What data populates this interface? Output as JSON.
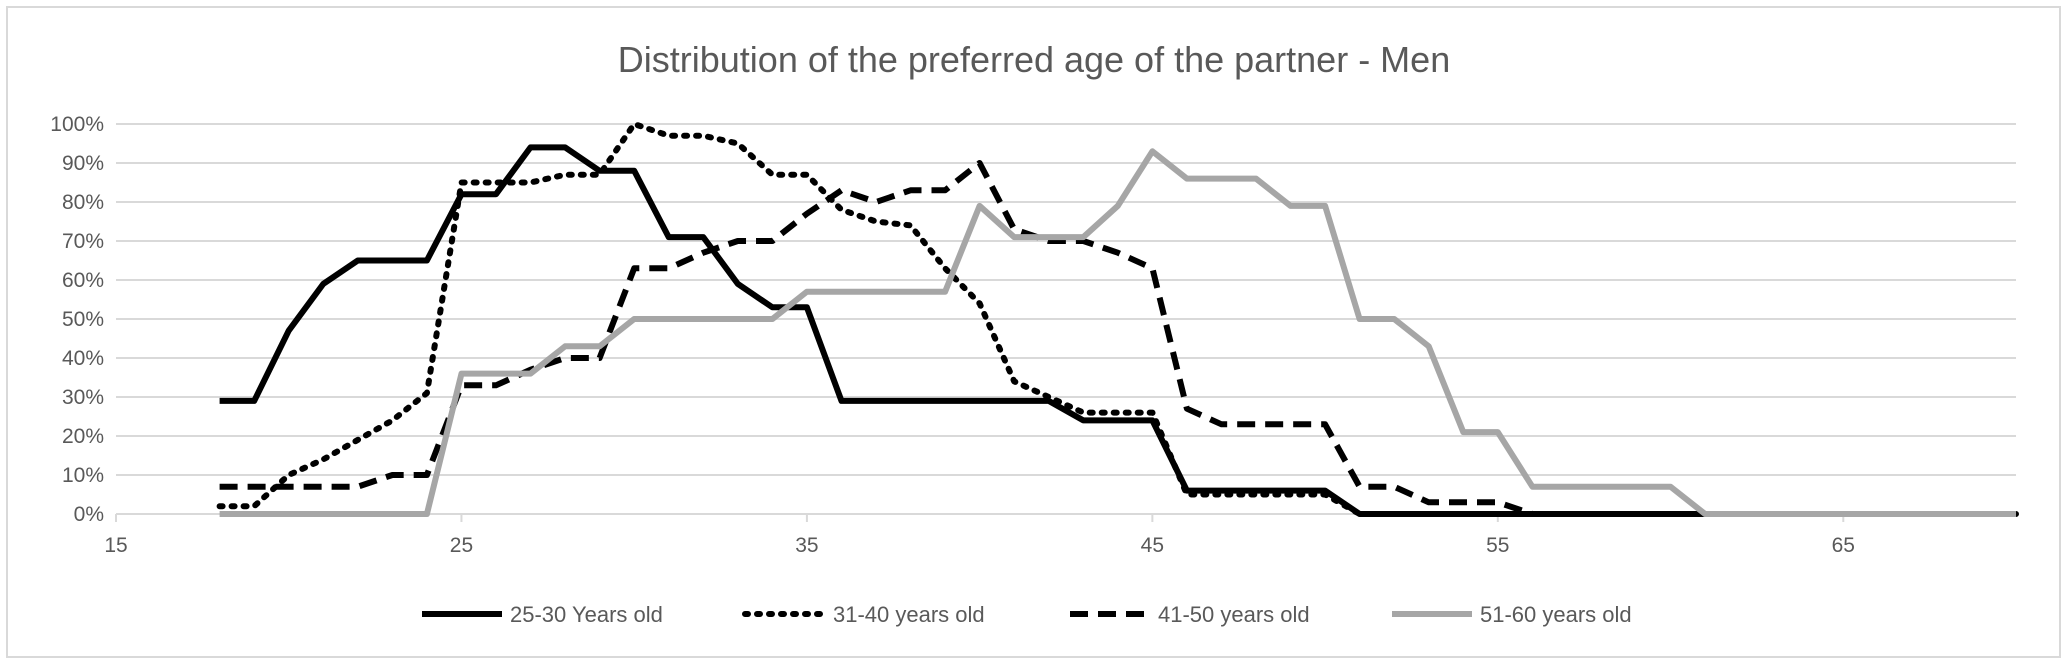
{
  "chart_data": {
    "type": "line",
    "title": "Distribution of the preferred age of the partner - Men",
    "xlabel": "",
    "ylabel": "",
    "xlim": [
      15,
      70
    ],
    "ylim": [
      0,
      1
    ],
    "x_ticks": [
      15,
      25,
      35,
      45,
      55,
      65
    ],
    "x_tick_labels": [
      "15",
      "25",
      "35",
      "45",
      "55",
      "65"
    ],
    "y_ticks": [
      0,
      0.1,
      0.2,
      0.3,
      0.4,
      0.5,
      0.6,
      0.7,
      0.8,
      0.9,
      1.0
    ],
    "y_tick_labels": [
      "0%",
      "10%",
      "20%",
      "30%",
      "40%",
      "50%",
      "60%",
      "70%",
      "80%",
      "90%",
      "100%"
    ],
    "grid": true,
    "legend_position": "bottom",
    "series": [
      {
        "name": "25-30 Years old",
        "color": "#000000",
        "dash": "solid",
        "x": [
          18,
          19,
          20,
          21,
          22,
          23,
          24,
          25,
          26,
          27,
          28,
          29,
          30,
          31,
          32,
          33,
          34,
          35,
          36,
          37,
          38,
          39,
          40,
          41,
          42,
          43,
          44,
          45,
          46,
          47,
          48,
          49,
          50,
          51,
          52,
          53,
          54,
          55,
          56,
          57,
          58,
          59,
          60,
          61,
          62,
          63,
          64,
          65,
          66,
          67,
          68,
          69,
          70
        ],
        "values": [
          0.29,
          0.29,
          0.47,
          0.59,
          0.65,
          0.65,
          0.65,
          0.82,
          0.82,
          0.94,
          0.94,
          0.88,
          0.88,
          0.71,
          0.71,
          0.59,
          0.53,
          0.53,
          0.29,
          0.29,
          0.29,
          0.29,
          0.29,
          0.29,
          0.29,
          0.24,
          0.24,
          0.24,
          0.06,
          0.06,
          0.06,
          0.06,
          0.06,
          0.0,
          0.0,
          0.0,
          0.0,
          0.0,
          0.0,
          0.0,
          0.0,
          0.0,
          0.0,
          0.0,
          0.0,
          0.0,
          0.0,
          0.0,
          0.0,
          0.0,
          0.0,
          0.0,
          0.0
        ]
      },
      {
        "name": "31-40 years old",
        "color": "#000000",
        "dash": "dotted",
        "x": [
          18,
          19,
          20,
          21,
          22,
          23,
          24,
          25,
          26,
          27,
          28,
          29,
          30,
          31,
          32,
          33,
          34,
          35,
          36,
          37,
          38,
          39,
          40,
          41,
          42,
          43,
          44,
          45,
          46,
          47,
          48,
          49,
          50,
          51,
          52,
          53,
          54,
          55,
          56,
          57,
          58,
          59,
          60,
          61,
          62,
          63,
          64,
          65,
          66,
          67,
          68,
          69,
          70
        ],
        "values": [
          0.02,
          0.02,
          0.1,
          0.14,
          0.19,
          0.24,
          0.31,
          0.85,
          0.85,
          0.85,
          0.87,
          0.87,
          1.0,
          0.97,
          0.97,
          0.95,
          0.87,
          0.87,
          0.78,
          0.75,
          0.74,
          0.63,
          0.54,
          0.34,
          0.3,
          0.26,
          0.26,
          0.26,
          0.05,
          0.05,
          0.05,
          0.05,
          0.05,
          0.0,
          0.0,
          0.0,
          0.0,
          0.0,
          0.0,
          0.0,
          0.0,
          0.0,
          0.0,
          0.0,
          0.0,
          0.0,
          0.0,
          0.0,
          0.0,
          0.0,
          0.0,
          0.0,
          0.0
        ]
      },
      {
        "name": "41-50 years old",
        "color": "#000000",
        "dash": "dashed",
        "x": [
          18,
          19,
          20,
          21,
          22,
          23,
          24,
          25,
          26,
          27,
          28,
          29,
          30,
          31,
          32,
          33,
          34,
          35,
          36,
          37,
          38,
          39,
          40,
          41,
          42,
          43,
          44,
          45,
          46,
          47,
          48,
          49,
          50,
          51,
          52,
          53,
          54,
          55,
          56,
          57,
          58,
          59,
          60,
          61,
          62,
          63,
          64,
          65,
          66,
          67,
          68,
          69,
          70
        ],
        "values": [
          0.07,
          0.07,
          0.07,
          0.07,
          0.07,
          0.1,
          0.1,
          0.33,
          0.33,
          0.37,
          0.4,
          0.4,
          0.63,
          0.63,
          0.67,
          0.7,
          0.7,
          0.77,
          0.83,
          0.8,
          0.83,
          0.83,
          0.9,
          0.73,
          0.7,
          0.7,
          0.67,
          0.63,
          0.27,
          0.23,
          0.23,
          0.23,
          0.23,
          0.07,
          0.07,
          0.03,
          0.03,
          0.03,
          0.0,
          0.0,
          0.0,
          0.0,
          0.0,
          0.0,
          0.0,
          0.0,
          0.0,
          0.0,
          0.0,
          0.0,
          0.0,
          0.0,
          0.0
        ]
      },
      {
        "name": "51-60 years old",
        "color": "#a6a6a6",
        "dash": "solid",
        "x": [
          18,
          19,
          20,
          21,
          22,
          23,
          24,
          25,
          26,
          27,
          28,
          29,
          30,
          31,
          32,
          33,
          34,
          35,
          36,
          37,
          38,
          39,
          40,
          41,
          42,
          43,
          44,
          45,
          46,
          47,
          48,
          49,
          50,
          51,
          52,
          53,
          54,
          55,
          56,
          57,
          58,
          59,
          60,
          61,
          62,
          63,
          64,
          65,
          66,
          67,
          68,
          69,
          70
        ],
        "values": [
          0.0,
          0.0,
          0.0,
          0.0,
          0.0,
          0.0,
          0.0,
          0.36,
          0.36,
          0.36,
          0.43,
          0.43,
          0.5,
          0.5,
          0.5,
          0.5,
          0.5,
          0.57,
          0.57,
          0.57,
          0.57,
          0.57,
          0.79,
          0.71,
          0.71,
          0.71,
          0.79,
          0.93,
          0.86,
          0.86,
          0.86,
          0.79,
          0.79,
          0.5,
          0.5,
          0.43,
          0.21,
          0.21,
          0.07,
          0.07,
          0.07,
          0.07,
          0.07,
          0.0,
          0.0,
          0.0,
          0.0,
          0.0,
          0.0,
          0.0,
          0.0,
          0.0,
          0.0
        ]
      }
    ]
  }
}
